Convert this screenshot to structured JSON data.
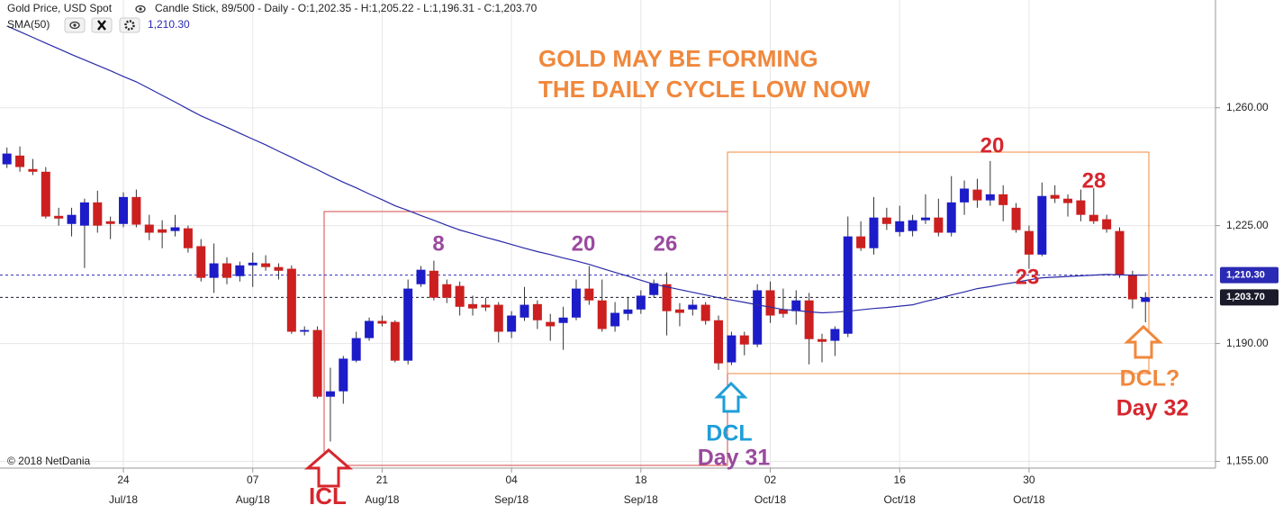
{
  "chart_data": {
    "type": "candlestick",
    "title": "Gold Price, USD Spot",
    "subtitle": "Candle Stick, 89/500 - Daily - O:1,202.35 - H:1,205.22 - L:1,196.31 - C:1,203.70",
    "categories": [
      null,
      null,
      null,
      null,
      null,
      null,
      null,
      null,
      null,
      "24",
      null,
      null,
      null,
      null,
      null,
      null,
      null,
      null,
      null,
      "07",
      null,
      null,
      null,
      null,
      null,
      null,
      null,
      null,
      null,
      "21",
      null,
      null,
      null,
      null,
      null,
      null,
      null,
      null,
      null,
      "04",
      null,
      null,
      null,
      null,
      null,
      null,
      null,
      null,
      null,
      "18",
      null,
      null,
      null,
      null,
      null,
      null,
      null,
      null,
      null,
      "02",
      null,
      null,
      null,
      null,
      null,
      null,
      null,
      null,
      null,
      "16",
      null,
      null,
      null,
      null,
      null,
      null,
      null,
      null,
      null,
      "30",
      null,
      null,
      null,
      null,
      null,
      null,
      null,
      null,
      null
    ],
    "category_months": [
      null,
      null,
      null,
      null,
      null,
      null,
      null,
      null,
      null,
      "Jul/18",
      null,
      null,
      null,
      null,
      null,
      null,
      null,
      null,
      null,
      "Aug/18",
      null,
      null,
      null,
      null,
      null,
      null,
      null,
      null,
      null,
      "Aug/18",
      null,
      null,
      null,
      null,
      null,
      null,
      null,
      null,
      null,
      "Sep/18",
      null,
      null,
      null,
      null,
      null,
      null,
      null,
      null,
      null,
      "Sep/18",
      null,
      null,
      null,
      null,
      null,
      null,
      null,
      null,
      null,
      "Oct/18",
      null,
      null,
      null,
      null,
      null,
      null,
      null,
      null,
      null,
      "Oct/18",
      null,
      null,
      null,
      null,
      null,
      null,
      null,
      null,
      null,
      "Oct/18",
      null,
      null,
      null,
      null,
      null,
      null,
      null,
      null,
      null
    ],
    "open": [
      1243.2,
      1245.8,
      1241.8,
      1241.0,
      1227.9,
      1225.5,
      1225.0,
      1231.9,
      1226.3,
      1225.5,
      1233.5,
      1225.3,
      1223.9,
      1223.4,
      1224.2,
      1218.9,
      1209.5,
      1213.8,
      1210.0,
      1213.2,
      1213.8,
      1212.7,
      1212.2,
      1193.5,
      1194.0,
      1174.2,
      1175.8,
      1184.9,
      1191.6,
      1196.7,
      1196.4,
      1184.9,
      1207.6,
      1211.6,
      1207.6,
      1207.1,
      1201.7,
      1201.5,
      1201.5,
      1193.5,
      1197.7,
      1201.7,
      1196.4,
      1196.1,
      1197.7,
      1206.3,
      1202.8,
      1195.1,
      1198.8,
      1200.1,
      1204.4,
      1207.6,
      1200.1,
      1200.1,
      1201.5,
      1196.9,
      1184.4,
      1192.4,
      1189.7,
      1205.8,
      1200.1,
      1199.6,
      1202.8,
      1191.3,
      1190.8,
      1192.9,
      1221.8,
      1218.3,
      1227.4,
      1223.1,
      1223.4,
      1226.6,
      1227.4,
      1222.9,
      1231.9,
      1235.7,
      1232.5,
      1234.3,
      1230.3,
      1223.4,
      1216.4,
      1234.1,
      1233.0,
      1232.5,
      1228.2,
      1226.9,
      1223.4,
      1210.3,
      1202.35
    ],
    "high": [
      1248.2,
      1248.5,
      1244.8,
      1242.4,
      1230.3,
      1230.3,
      1233.0,
      1235.4,
      1227.7,
      1234.9,
      1235.7,
      1228.2,
      1226.6,
      1228.2,
      1225.0,
      1221.0,
      1219.7,
      1215.6,
      1214.3,
      1217.0,
      1216.2,
      1213.8,
      1213.2,
      1195.1,
      1195.1,
      1182.8,
      1186.3,
      1193.5,
      1197.7,
      1198.3,
      1196.9,
      1209.0,
      1213.0,
      1214.6,
      1209.0,
      1208.4,
      1204.2,
      1203.6,
      1202.3,
      1199.6,
      1206.8,
      1202.8,
      1198.8,
      1200.9,
      1209.0,
      1213.0,
      1209.0,
      1202.3,
      1203.6,
      1205.8,
      1209.0,
      1211.1,
      1202.0,
      1203.1,
      1202.3,
      1198.3,
      1193.5,
      1193.5,
      1207.6,
      1208.4,
      1206.3,
      1205.8,
      1205.0,
      1192.9,
      1195.1,
      1227.7,
      1226.3,
      1233.5,
      1230.3,
      1230.9,
      1228.2,
      1234.3,
      1233.0,
      1239.7,
      1238.4,
      1238.9,
      1244.2,
      1237.0,
      1231.7,
      1225.0,
      1237.8,
      1237.0,
      1234.3,
      1235.7,
      1236.2,
      1228.2,
      1224.5,
      1211.6,
      1205.22
    ],
    "low": [
      1242.1,
      1241.0,
      1240.0,
      1227.1,
      1225.0,
      1221.8,
      1212.4,
      1222.9,
      1221.0,
      1224.5,
      1224.5,
      1220.7,
      1218.3,
      1221.8,
      1217.0,
      1208.4,
      1205.0,
      1207.6,
      1208.4,
      1206.8,
      1211.6,
      1209.0,
      1192.9,
      1192.4,
      1173.7,
      1160.9,
      1172.1,
      1184.4,
      1190.8,
      1195.1,
      1184.4,
      1183.8,
      1206.8,
      1202.8,
      1202.0,
      1198.3,
      1198.3,
      1199.6,
      1190.3,
      1191.6,
      1196.7,
      1194.3,
      1190.8,
      1188.1,
      1196.9,
      1201.5,
      1193.5,
      1193.5,
      1196.9,
      1198.8,
      1203.6,
      1192.4,
      1195.1,
      1198.3,
      1195.6,
      1182.2,
      1183.6,
      1186.5,
      1188.9,
      1196.1,
      1197.7,
      1195.6,
      1183.8,
      1184.4,
      1186.3,
      1191.9,
      1217.5,
      1216.4,
      1223.7,
      1221.8,
      1221.8,
      1225.5,
      1221.8,
      1221.8,
      1228.2,
      1230.3,
      1230.9,
      1226.3,
      1222.9,
      1212.2,
      1215.9,
      1231.7,
      1227.7,
      1226.3,
      1225.5,
      1222.9,
      1209.5,
      1200.4,
      1196.31
    ],
    "close": [
      1246.4,
      1242.4,
      1241.0,
      1227.7,
      1227.1,
      1228.2,
      1231.9,
      1225.0,
      1225.5,
      1233.5,
      1225.3,
      1222.9,
      1222.9,
      1224.5,
      1218.3,
      1209.5,
      1213.8,
      1209.5,
      1213.2,
      1214.0,
      1212.7,
      1211.6,
      1193.5,
      1194.0,
      1174.2,
      1175.8,
      1185.5,
      1191.6,
      1196.7,
      1195.9,
      1184.9,
      1206.3,
      1211.9,
      1203.6,
      1203.6,
      1200.9,
      1200.4,
      1200.7,
      1193.5,
      1198.3,
      1201.5,
      1196.9,
      1195.1,
      1197.7,
      1206.3,
      1202.8,
      1194.3,
      1199.1,
      1200.1,
      1204.2,
      1207.9,
      1199.6,
      1199.1,
      1201.5,
      1196.7,
      1184.1,
      1192.4,
      1189.7,
      1205.8,
      1198.3,
      1198.8,
      1202.8,
      1191.3,
      1190.5,
      1194.3,
      1221.8,
      1218.3,
      1227.4,
      1225.5,
      1226.3,
      1226.6,
      1227.4,
      1222.9,
      1231.9,
      1236.0,
      1232.5,
      1234.3,
      1231.1,
      1223.7,
      1216.4,
      1233.8,
      1233.0,
      1231.7,
      1228.2,
      1226.3,
      1223.9,
      1210.3,
      1203.1,
      1203.7
    ],
    "up_color": "#1c1cc8",
    "down_color": "#cc1f1f",
    "sma": {
      "name": "SMA(50)",
      "value_label": "1,210.30",
      "color": "#2a2aa8",
      "values": [
        1284.3,
        1282.6,
        1280.9,
        1279.2,
        1277.5,
        1275.8,
        1274.2,
        1272.6,
        1271.0,
        1269.3,
        1267.7,
        1265.7,
        1263.7,
        1261.7,
        1259.6,
        1257.6,
        1255.9,
        1254.2,
        1252.4,
        1250.7,
        1249.0,
        1247.1,
        1245.3,
        1243.4,
        1241.6,
        1239.7,
        1237.9,
        1236.2,
        1234.4,
        1232.7,
        1230.9,
        1229.5,
        1228.0,
        1226.6,
        1225.1,
        1223.7,
        1222.6,
        1221.5,
        1220.5,
        1219.4,
        1218.3,
        1217.3,
        1216.4,
        1215.4,
        1214.5,
        1213.5,
        1212.3,
        1211.1,
        1210.0,
        1208.8,
        1207.6,
        1206.8,
        1206.0,
        1205.2,
        1204.4,
        1203.6,
        1202.9,
        1202.2,
        1201.5,
        1200.8,
        1200.1,
        1199.8,
        1199.4,
        1199.1,
        1199.3,
        1199.6,
        1200.0,
        1200.4,
        1200.7,
        1201.1,
        1201.5,
        1202.5,
        1203.4,
        1204.4,
        1205.3,
        1206.3,
        1206.9,
        1207.6,
        1208.2,
        1208.9,
        1209.5,
        1209.7,
        1209.9,
        1210.1,
        1210.3,
        1210.5,
        1210.4,
        1210.3,
        1210.3
      ]
    },
    "ylim": [
      1153,
      1292
    ],
    "yticks": [
      {
        "value": 1155,
        "label": "1,155.00"
      },
      {
        "value": 1190,
        "label": "1,190.00"
      },
      {
        "value": 1225,
        "label": "1,225.00"
      },
      {
        "value": 1260,
        "label": "1,260.00"
      }
    ],
    "grid": true,
    "price_lines": [
      {
        "value": 1210.3,
        "label": "1,210.30",
        "color": "#2a2ab5"
      },
      {
        "value": 1203.7,
        "label": "1,203.70",
        "color": "#1a1a2a"
      }
    ],
    "annotations": [
      {
        "text": "GOLD MAY BE FORMING",
        "color": "#f0883c"
      },
      {
        "text": "THE DAILY CYCLE LOW NOW",
        "color": "#f0883c"
      },
      {
        "text": "8",
        "color": "#9a4a9e"
      },
      {
        "text": "20",
        "color": "#9a4a9e"
      },
      {
        "text": "26",
        "color": "#9a4a9e"
      },
      {
        "text": "20",
        "color": "#d6262e"
      },
      {
        "text": "28",
        "color": "#d6262e"
      },
      {
        "text": "23",
        "color": "#d6262e"
      },
      {
        "text": "ICL",
        "color": "#d6262e"
      },
      {
        "text": "DCL",
        "color": "#1e9ed8"
      },
      {
        "text": "Day 31",
        "color": "#9a4a9e"
      },
      {
        "text": "DCL?",
        "color": "#f0883c"
      },
      {
        "text": "Day 32",
        "color": "#d6262e"
      }
    ],
    "copyright": "© 2018 NetDania"
  }
}
